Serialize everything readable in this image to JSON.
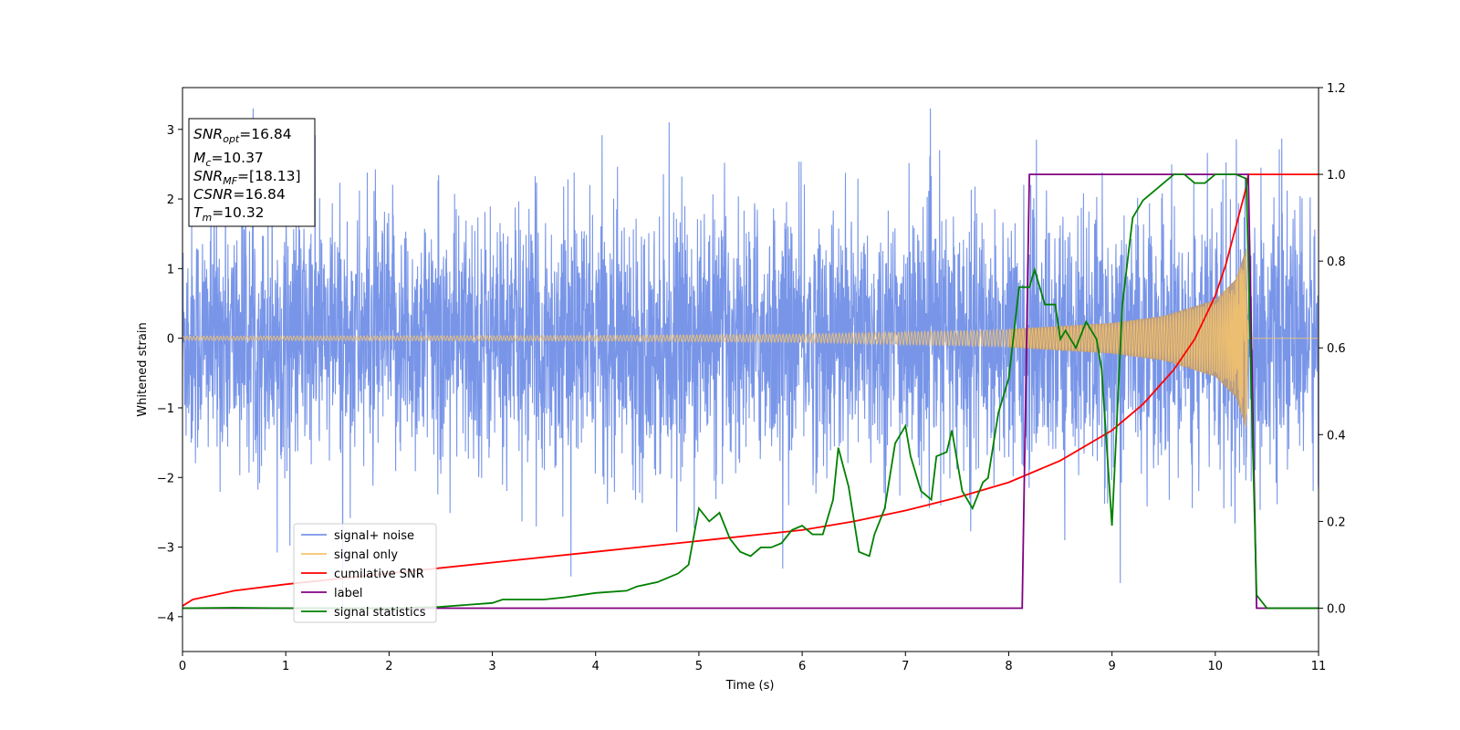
{
  "chart_data": {
    "type": "line",
    "xlabel": "Time (s)",
    "ylabel": "Whitened strain",
    "xlim": [
      0,
      11
    ],
    "ylim": [
      -4.5,
      3.6
    ],
    "y2lim": [
      -0.1,
      1.2
    ],
    "x_ticks": [
      0,
      1,
      2,
      3,
      4,
      5,
      6,
      7,
      8,
      9,
      10,
      11
    ],
    "y_ticks": [
      -4,
      -3,
      -2,
      -1,
      0,
      1,
      2,
      3
    ],
    "y2_ticks": [
      "0.0",
      "0.2",
      "0.4",
      "0.6",
      "0.8",
      "1.0",
      "1.2"
    ],
    "grid": false,
    "legend_position": "lower-left",
    "annotation": {
      "lines": [
        {
          "base": "SNR",
          "sub": "opt",
          "rest": "=16.84"
        },
        {
          "base": "M",
          "sub": "c",
          "rest": "=10.37"
        },
        {
          "base": "SNR",
          "sub": "MF",
          "rest": "=[18.13]"
        },
        {
          "base": "CSNR",
          "sub": "",
          "rest": "=16.84"
        },
        {
          "base": "T",
          "sub": "m",
          "rest": "=10.32"
        }
      ]
    },
    "series": [
      {
        "name": "signal+ noise",
        "color": "#7895e8",
        "axis": "left",
        "description_values": {
          "noise_sigma": 0.9,
          "t_start": 0,
          "t_end": 11,
          "merger_time": 10.32
        }
      },
      {
        "name": "signal only",
        "color": "#f5c46e",
        "axis": "left",
        "envelope": {
          "t": [
            0,
            2,
            4,
            6,
            8,
            9,
            9.5,
            10,
            10.2,
            10.3,
            10.32,
            10.35,
            11
          ],
          "amp": [
            0.03,
            0.035,
            0.04,
            0.06,
            0.13,
            0.22,
            0.32,
            0.55,
            0.85,
            1.3,
            0.1,
            0.0,
            0.0
          ]
        }
      },
      {
        "name": "cumilative SNR",
        "color": "#ff0000",
        "axis": "right",
        "x": [
          0,
          0.1,
          0.5,
          1,
          2,
          3,
          4,
          5,
          6,
          6.5,
          7,
          7.5,
          8,
          8.5,
          9,
          9.3,
          9.6,
          9.8,
          10.0,
          10.1,
          10.2,
          10.3,
          10.32,
          11
        ],
        "y": [
          0.005,
          0.02,
          0.04,
          0.055,
          0.08,
          0.105,
          0.13,
          0.155,
          0.18,
          0.2,
          0.225,
          0.255,
          0.29,
          0.34,
          0.41,
          0.47,
          0.55,
          0.62,
          0.72,
          0.79,
          0.88,
          0.97,
          1.0,
          1.0
        ]
      },
      {
        "name": "label",
        "color": "#800080",
        "axis": "right",
        "x": [
          0,
          8.13,
          8.2,
          10.32,
          10.4,
          11
        ],
        "y": [
          0.0,
          0.0,
          1.0,
          1.0,
          0.0,
          0.0
        ]
      },
      {
        "name": "signal statistics",
        "color": "#008000",
        "axis": "right",
        "x": [
          0,
          0.5,
          1,
          1.5,
          2,
          2.5,
          3,
          3.1,
          3.2,
          3.5,
          3.7,
          4,
          4.3,
          4.4,
          4.6,
          4.8,
          4.9,
          5.0,
          5.1,
          5.2,
          5.3,
          5.4,
          5.5,
          5.6,
          5.7,
          5.8,
          5.9,
          6.0,
          6.1,
          6.2,
          6.3,
          6.35,
          6.45,
          6.55,
          6.65,
          6.7,
          6.8,
          6.9,
          7.0,
          7.05,
          7.15,
          7.25,
          7.3,
          7.4,
          7.45,
          7.55,
          7.65,
          7.75,
          7.8,
          7.9,
          8.0,
          8.1,
          8.2,
          8.25,
          8.35,
          8.45,
          8.5,
          8.55,
          8.65,
          8.75,
          8.85,
          8.9,
          9.0,
          9.1,
          9.2,
          9.3,
          9.4,
          9.5,
          9.6,
          9.7,
          9.8,
          9.9,
          10.0,
          10.1,
          10.2,
          10.3,
          10.35,
          10.4,
          10.5,
          11
        ],
        "y": [
          0.0,
          0.001,
          0.0,
          0.0,
          0.0,
          0.003,
          0.012,
          0.02,
          0.02,
          0.02,
          0.025,
          0.035,
          0.04,
          0.05,
          0.06,
          0.08,
          0.1,
          0.23,
          0.2,
          0.22,
          0.16,
          0.13,
          0.12,
          0.14,
          0.14,
          0.15,
          0.18,
          0.19,
          0.17,
          0.17,
          0.25,
          0.37,
          0.28,
          0.13,
          0.12,
          0.17,
          0.23,
          0.38,
          0.42,
          0.35,
          0.27,
          0.25,
          0.35,
          0.36,
          0.41,
          0.27,
          0.23,
          0.29,
          0.3,
          0.45,
          0.53,
          0.74,
          0.74,
          0.78,
          0.7,
          0.7,
          0.62,
          0.64,
          0.6,
          0.66,
          0.62,
          0.55,
          0.19,
          0.7,
          0.9,
          0.94,
          0.96,
          0.98,
          1.0,
          1.0,
          0.98,
          0.98,
          1.0,
          1.0,
          1.0,
          0.99,
          0.5,
          0.03,
          0.0,
          0.0
        ]
      }
    ]
  }
}
